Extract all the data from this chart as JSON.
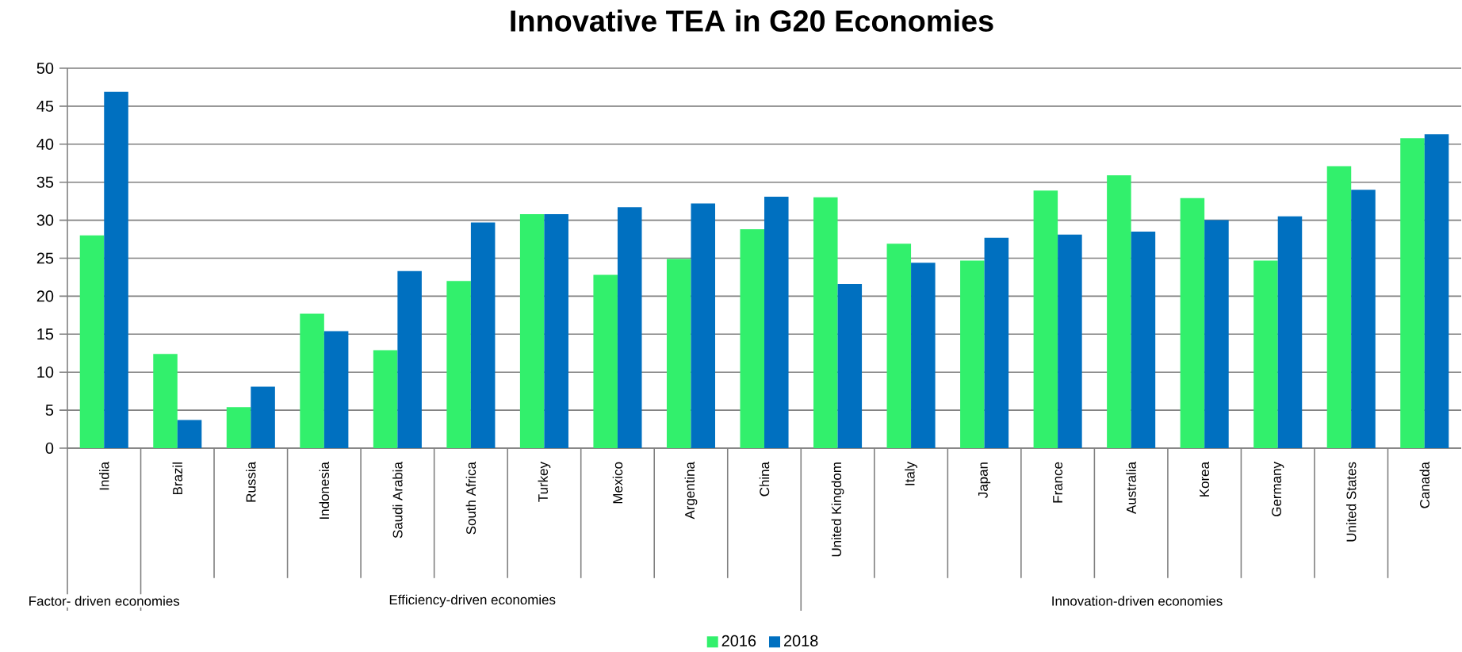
{
  "chart_data": {
    "type": "bar",
    "title": "Innovative TEA in G20 Economies",
    "categories": [
      "India",
      "Brazil",
      "Russia",
      "Indonesia",
      "Saudi Arabia",
      "South Africa",
      "Turkey",
      "Mexico",
      "Argentina",
      "China",
      "United Kingdom",
      "Italy",
      "Japan",
      "France",
      "Australia",
      "Korea",
      "Germany",
      "United States",
      "Canada"
    ],
    "series": [
      {
        "name": "2016",
        "color": "#32f06c",
        "values": [
          28.0,
          12.4,
          5.4,
          17.7,
          12.9,
          22.0,
          30.8,
          22.8,
          24.9,
          28.8,
          33.0,
          26.9,
          24.7,
          33.9,
          35.9,
          32.9,
          24.7,
          37.1,
          40.8
        ]
      },
      {
        "name": "2018",
        "color": "#0070c0",
        "values": [
          46.9,
          3.7,
          8.1,
          15.4,
          23.3,
          29.7,
          30.8,
          31.7,
          32.2,
          33.1,
          21.6,
          24.4,
          27.7,
          28.1,
          28.5,
          30.0,
          30.5,
          34.0,
          41.3
        ]
      }
    ],
    "annotations": [
      "Factor- driven economies",
      "Efficiency-driven economies",
      "Innovation-driven economies"
    ],
    "ylim": [
      0,
      50
    ],
    "yticks": [
      0,
      5,
      10,
      15,
      20,
      25,
      30,
      35,
      40,
      45,
      50
    ],
    "grid": "y",
    "legend": "bottom"
  }
}
